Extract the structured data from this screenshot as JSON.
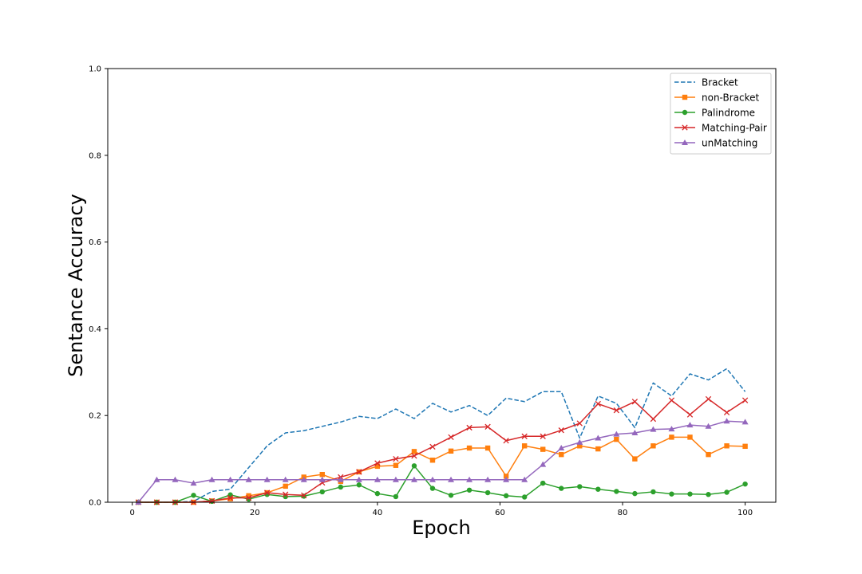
{
  "chart_data": {
    "type": "line",
    "title": "",
    "xlabel": "Epoch",
    "ylabel": "Sentance Accuracy",
    "xlim": [
      -4,
      105
    ],
    "ylim": [
      0,
      1.0
    ],
    "xticks": [
      0,
      20,
      40,
      60,
      80,
      100
    ],
    "yticks": [
      0.0,
      0.2,
      0.4,
      0.6,
      0.8,
      1.0
    ],
    "grid": false,
    "legend_position": "top-right",
    "x": [
      1,
      4,
      7,
      10,
      13,
      16,
      19,
      22,
      25,
      28,
      31,
      34,
      37,
      40,
      43,
      46,
      49,
      52,
      55,
      58,
      61,
      64,
      67,
      70,
      73,
      76,
      79,
      82,
      85,
      88,
      91,
      94,
      97,
      100
    ],
    "series": [
      {
        "name": "Bracket",
        "color": "#1f77b4",
        "style": "dashed",
        "marker": "none",
        "values": [
          0.0,
          0.0,
          0.0,
          0.002,
          0.025,
          0.03,
          0.08,
          0.13,
          0.16,
          0.165,
          0.175,
          0.185,
          0.198,
          0.193,
          0.215,
          0.193,
          0.228,
          0.208,
          0.223,
          0.2,
          0.24,
          0.232,
          0.255,
          0.255,
          0.148,
          0.245,
          0.228,
          0.172,
          0.275,
          0.245,
          0.296,
          0.282,
          0.308,
          0.255
        ]
      },
      {
        "name": "non-Bracket",
        "color": "#ff7f0e",
        "style": "solid",
        "marker": "square",
        "values": [
          0.0,
          0.0,
          0.0,
          0.0,
          0.003,
          0.008,
          0.015,
          0.022,
          0.037,
          0.058,
          0.064,
          0.048,
          0.07,
          0.083,
          0.085,
          0.117,
          0.097,
          0.118,
          0.125,
          0.125,
          0.06,
          0.13,
          0.122,
          0.11,
          0.13,
          0.123,
          0.145,
          0.1,
          0.13,
          0.15,
          0.15,
          0.11,
          0.13,
          0.129
        ]
      },
      {
        "name": "Palindrome",
        "color": "#2ca02c",
        "style": "solid",
        "marker": "circle",
        "values": [
          0.0,
          0.0,
          0.0,
          0.016,
          0.002,
          0.017,
          0.007,
          0.018,
          0.013,
          0.014,
          0.024,
          0.035,
          0.04,
          0.02,
          0.013,
          0.084,
          0.032,
          0.016,
          0.028,
          0.022,
          0.015,
          0.012,
          0.044,
          0.032,
          0.036,
          0.03,
          0.025,
          0.02,
          0.024,
          0.019,
          0.019,
          0.018,
          0.023,
          0.042
        ]
      },
      {
        "name": "Matching-Pair",
        "color": "#d62728",
        "style": "solid",
        "marker": "x",
        "values": [
          0.0,
          0.0,
          0.0,
          0.0,
          0.003,
          0.01,
          0.01,
          0.022,
          0.018,
          0.016,
          0.045,
          0.058,
          0.07,
          0.09,
          0.1,
          0.107,
          0.128,
          0.15,
          0.172,
          0.174,
          0.142,
          0.152,
          0.152,
          0.166,
          0.182,
          0.227,
          0.212,
          0.232,
          0.192,
          0.235,
          0.202,
          0.238,
          0.207,
          0.235
        ]
      },
      {
        "name": "unMatching",
        "color": "#9467bd",
        "style": "solid",
        "marker": "triangle",
        "values": [
          0.0,
          0.052,
          0.052,
          0.044,
          0.052,
          0.052,
          0.052,
          0.052,
          0.052,
          0.052,
          0.052,
          0.052,
          0.052,
          0.052,
          0.052,
          0.052,
          0.052,
          0.052,
          0.052,
          0.052,
          0.052,
          0.052,
          0.087,
          0.125,
          0.138,
          0.148,
          0.157,
          0.16,
          0.168,
          0.169,
          0.178,
          0.175,
          0.187,
          0.185
        ]
      }
    ]
  }
}
